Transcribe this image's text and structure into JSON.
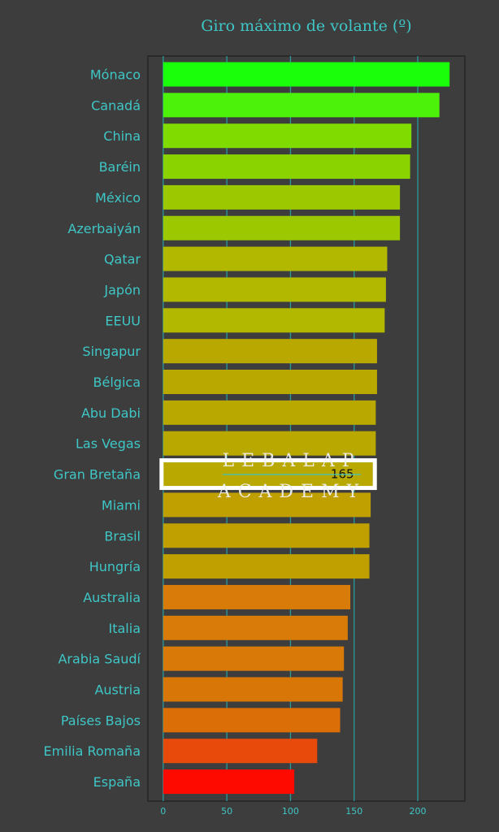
{
  "chart_data": {
    "type": "bar",
    "orientation": "horizontal",
    "title": "Giro máximo de volante (º)",
    "xlabel": "",
    "ylabel": "",
    "xlim": [
      -12,
      237
    ],
    "xticks": [
      0,
      50,
      100,
      150,
      200
    ],
    "grid": true,
    "categories": [
      "Mónaco",
      "Canadá",
      "China",
      "Baréin",
      "México",
      "Azerbaiyán",
      "Qatar",
      "Japón",
      "EEUU",
      "Singapur",
      "Bélgica",
      "Abu Dabi",
      "Las Vegas",
      "Gran Bretaña",
      "Miami",
      "Brasil",
      "Hungría",
      "Australia",
      "Italia",
      "Arabia Saudí",
      "Austria",
      "Países Bajos",
      "Emilia Romaña",
      "España"
    ],
    "values": [
      225,
      217,
      195,
      194,
      186,
      186,
      176,
      175,
      174,
      168,
      168,
      167,
      167,
      165,
      163,
      162,
      162,
      147,
      145,
      142,
      141,
      139,
      121,
      103
    ],
    "colors": [
      "#1aff0a",
      "#4df20a",
      "#7fdb00",
      "#8ad300",
      "#9cc800",
      "#9cc800",
      "#b2b800",
      "#b2b800",
      "#b2b800",
      "#b8a800",
      "#b8a800",
      "#b8a800",
      "#b8a800",
      "#b8a800",
      "#bfa000",
      "#bfa000",
      "#bfa000",
      "#d97b08",
      "#d97b08",
      "#d97a08",
      "#d97608",
      "#dc6e08",
      "#e84a0c",
      "#ff0a00"
    ],
    "highlight": {
      "category": "Gran Bretaña",
      "value_label": "165"
    },
    "watermark": [
      "LEBALAP",
      "ACADEMY"
    ]
  },
  "style": {
    "background": "#3d3d3d",
    "text_color": "#3fc6c6",
    "grid_color": "#2a9a9a",
    "highlight_color": "#ffffff"
  }
}
